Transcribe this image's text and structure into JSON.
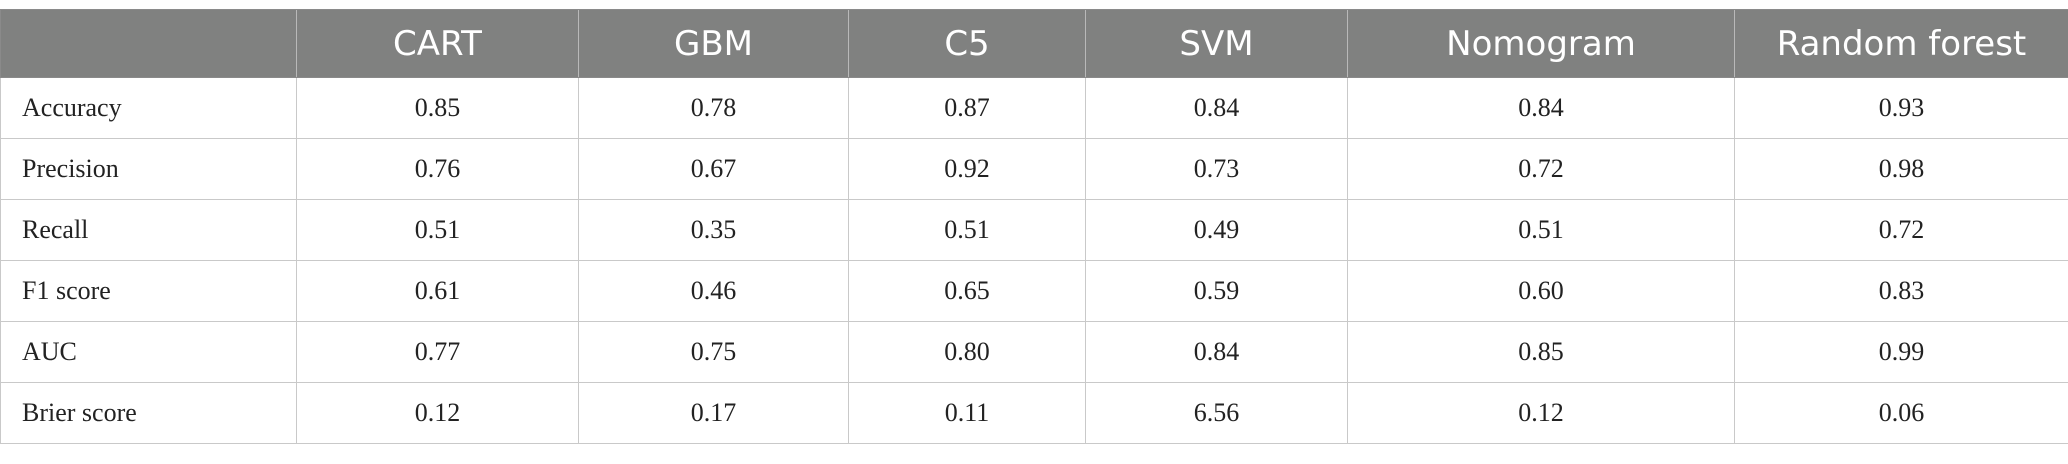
{
  "table": {
    "columns": [
      "",
      "CART",
      "GBM",
      "C5",
      "SVM",
      "Nomogram",
      "Random forest"
    ],
    "rows": [
      {
        "label": "Accuracy",
        "values": [
          "0.85",
          "0.78",
          "0.87",
          "0.84",
          "0.84",
          "0.93"
        ]
      },
      {
        "label": "Precision",
        "values": [
          "0.76",
          "0.67",
          "0.92",
          "0.73",
          "0.72",
          "0.98"
        ]
      },
      {
        "label": "Recall",
        "values": [
          "0.51",
          "0.35",
          "0.51",
          "0.49",
          "0.51",
          "0.72"
        ]
      },
      {
        "label": "F1 score",
        "values": [
          "0.61",
          "0.46",
          "0.65",
          "0.59",
          "0.60",
          "0.83"
        ]
      },
      {
        "label": "AUC",
        "values": [
          "0.77",
          "0.75",
          "0.80",
          "0.84",
          "0.85",
          "0.99"
        ]
      },
      {
        "label": "Brier score",
        "values": [
          "0.12",
          "0.17",
          "0.11",
          "6.56",
          "0.12",
          "0.06"
        ]
      }
    ]
  },
  "colors": {
    "header_background": "#808180",
    "header_text": "#ffffff",
    "grid_line": "#c9c9c9"
  }
}
